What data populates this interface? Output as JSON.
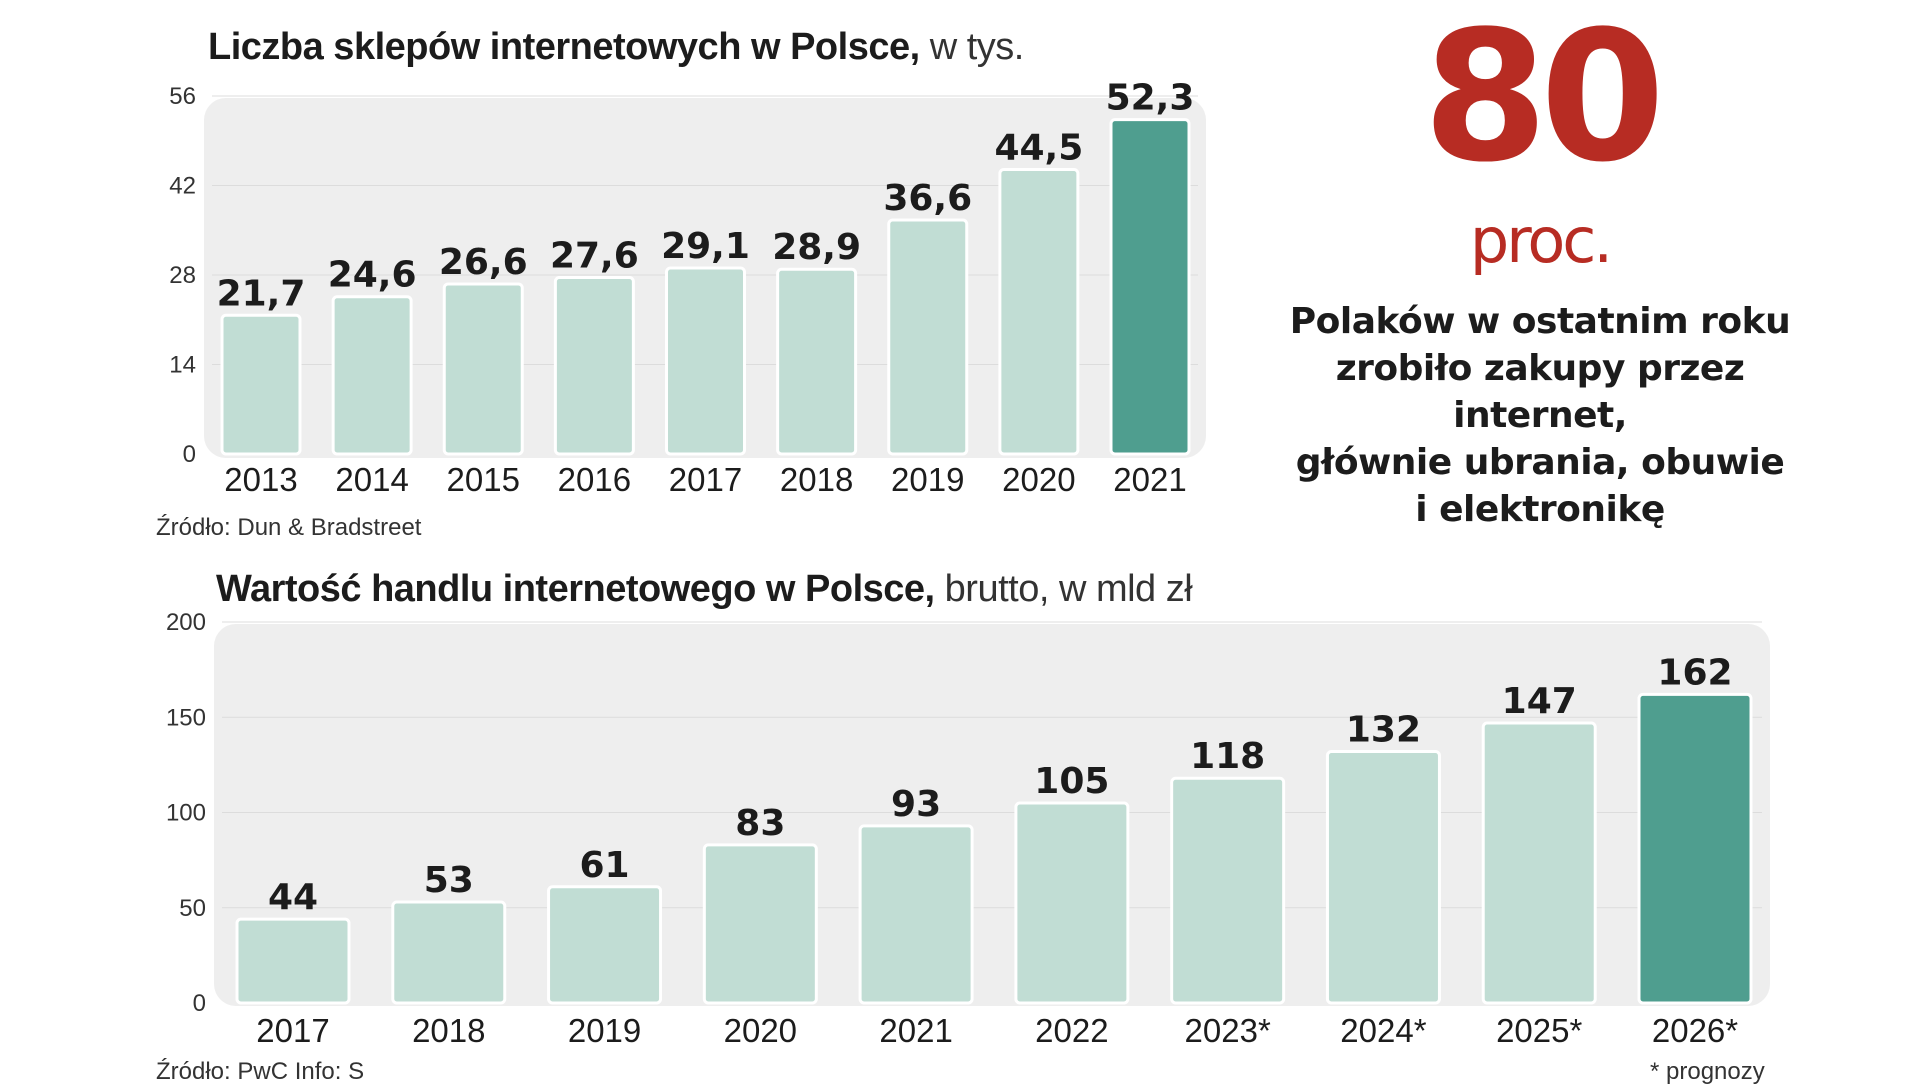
{
  "charts": {
    "shops": {
      "title_bold": "Liczba sklepów internetowych w Polsce,",
      "title_rest": " w tys.",
      "source": "Źródło: Dun & Bradstreet"
    },
    "trade": {
      "title_bold": "Wartość handlu internetowego w Polsce,",
      "title_rest": " brutto, w mld zł",
      "source": "Źródło: PwC   Info: S",
      "footnote": "* prognozy"
    }
  },
  "highlight": {
    "number": "80",
    "unit": "proc.",
    "description": [
      "Polaków w ostatnim roku",
      "zrobiło zakupy przez internet,",
      "głównie ubrania, obuwie",
      "i elektronikę"
    ]
  },
  "colors": {
    "bar_light": "#c1ddd4",
    "bar_highlight": "#4f9e8f",
    "panel_bg": "#eeeeee",
    "accent_red": "#b72c23"
  },
  "chart_data": [
    {
      "type": "bar",
      "title": "Liczba sklepów internetowych w Polsce, w tys.",
      "categories": [
        "2013",
        "2014",
        "2015",
        "2016",
        "2017",
        "2018",
        "2019",
        "2020",
        "2021"
      ],
      "values": [
        21.7,
        24.6,
        26.6,
        27.6,
        29.1,
        28.9,
        36.6,
        44.5,
        52.3
      ],
      "value_labels": [
        "21,7",
        "24,6",
        "26,6",
        "27,6",
        "29,1",
        "28,9",
        "36,6",
        "44,5",
        "52,3"
      ],
      "y_ticks": [
        0,
        14,
        28,
        42,
        56
      ],
      "ylim": [
        0,
        56
      ],
      "highlight_index": 8,
      "grid": true
    },
    {
      "type": "bar",
      "title": "Wartość handlu internetowego w Polsce, brutto, w mld zł",
      "categories": [
        "2017",
        "2018",
        "2019",
        "2020",
        "2021",
        "2022",
        "2023*",
        "2024*",
        "2025*",
        "2026*"
      ],
      "values": [
        44,
        53,
        61,
        83,
        93,
        105,
        118,
        132,
        147,
        162
      ],
      "value_labels": [
        "44",
        "53",
        "61",
        "83",
        "93",
        "105",
        "118",
        "132",
        "147",
        "162"
      ],
      "y_ticks": [
        0,
        50,
        100,
        150,
        200
      ],
      "ylim": [
        0,
        200
      ],
      "highlight_index": 9,
      "grid": true
    }
  ]
}
